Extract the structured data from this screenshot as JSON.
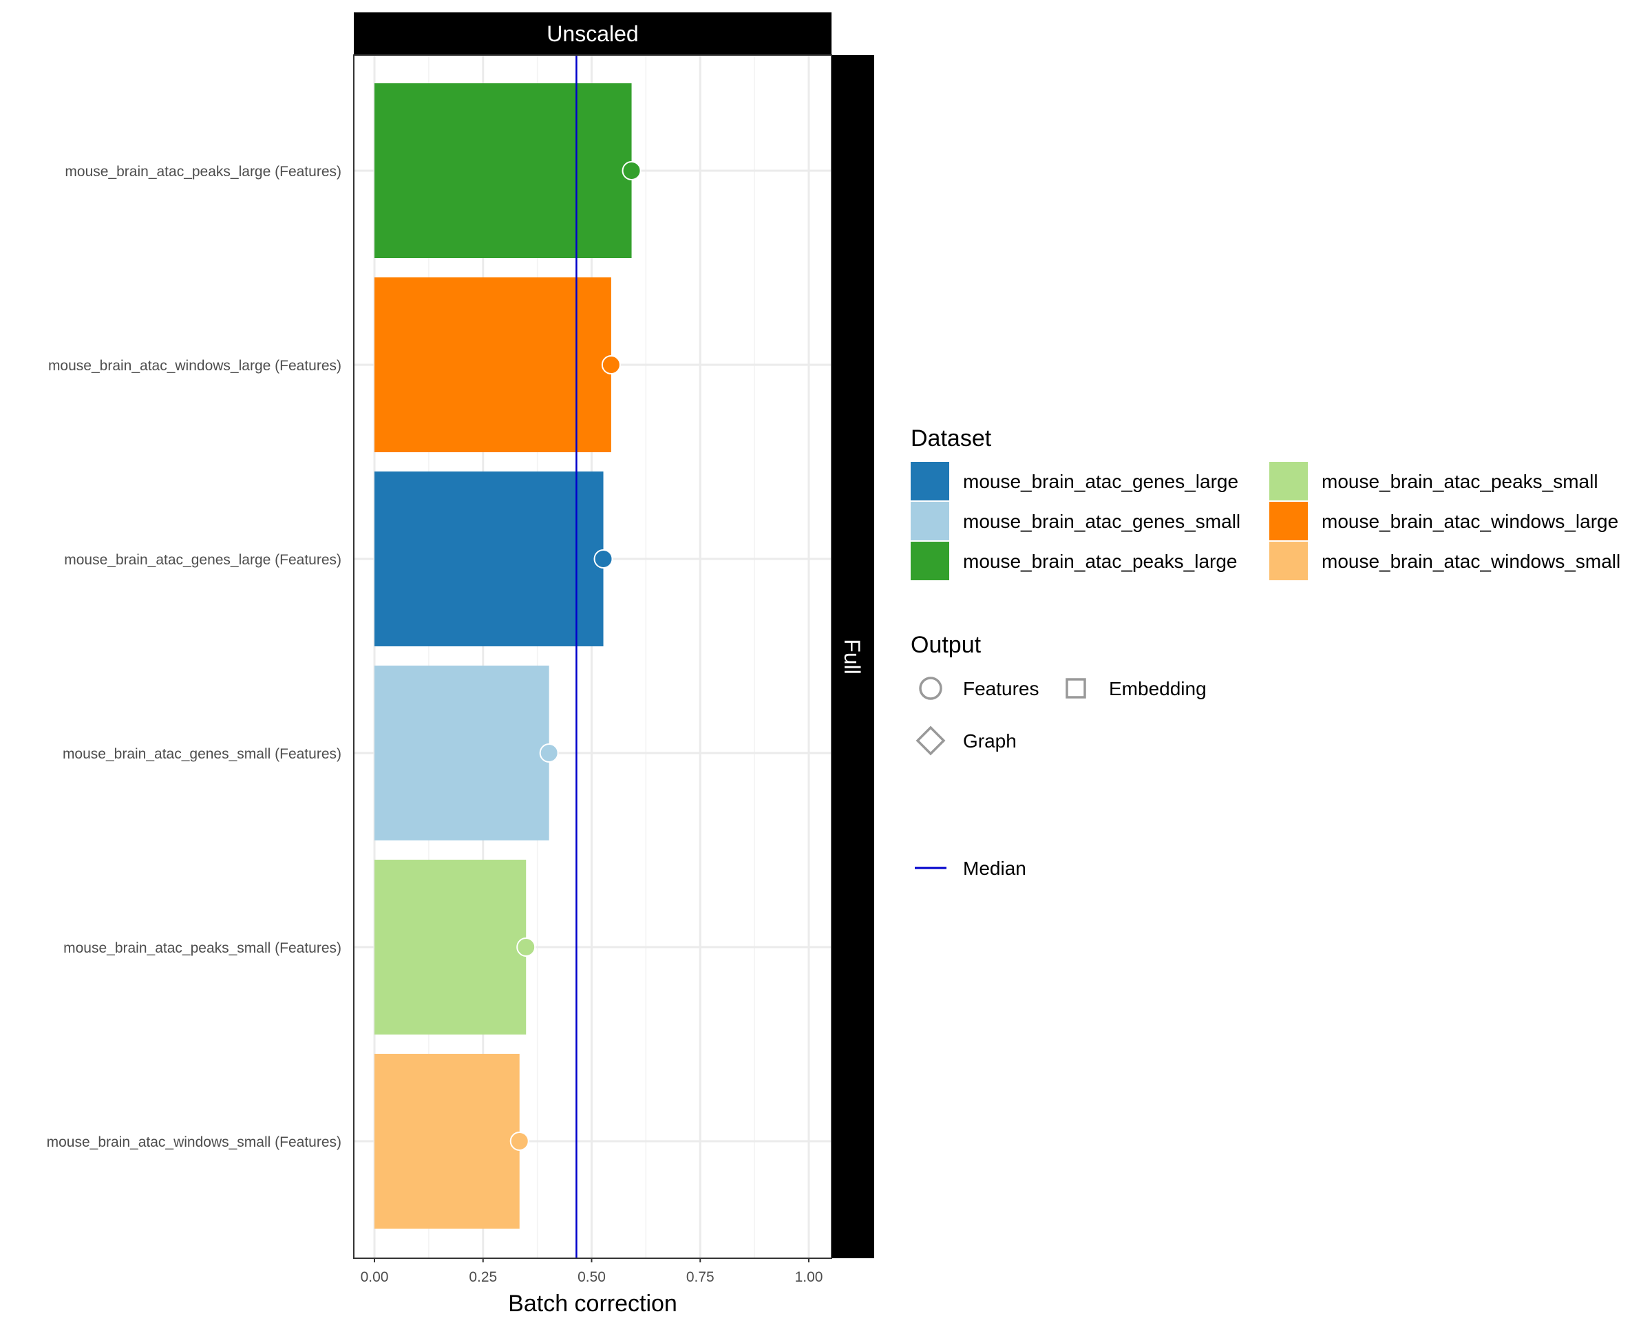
{
  "chart_data": {
    "type": "bar",
    "orientation": "horizontal",
    "facet_top": "Unscaled",
    "facet_right": "Full",
    "xlabel": "Batch correction",
    "ylabel": "",
    "xlim": [
      0,
      1.0
    ],
    "x_ticks": [
      "0.00",
      "0.25",
      "0.50",
      "0.75",
      "1.00"
    ],
    "x_tick_values": [
      0,
      0.25,
      0.5,
      0.75,
      1.0
    ],
    "median": 0.465,
    "grid": true,
    "legend_position": "right",
    "bars": [
      {
        "label": "mouse_brain_atac_peaks_large (Features)",
        "dataset": "mouse_brain_atac_peaks_large",
        "output": "Features",
        "value": 0.592
      },
      {
        "label": "mouse_brain_atac_windows_large (Features)",
        "dataset": "mouse_brain_atac_windows_large",
        "output": "Features",
        "value": 0.545
      },
      {
        "label": "mouse_brain_atac_genes_large (Features)",
        "dataset": "mouse_brain_atac_genes_large",
        "output": "Features",
        "value": 0.527
      },
      {
        "label": "mouse_brain_atac_genes_small (Features)",
        "dataset": "mouse_brain_atac_genes_small",
        "output": "Features",
        "value": 0.402
      },
      {
        "label": "mouse_brain_atac_peaks_small (Features)",
        "dataset": "mouse_brain_atac_peaks_small",
        "output": "Features",
        "value": 0.349
      },
      {
        "label": "mouse_brain_atac_windows_small (Features)",
        "dataset": "mouse_brain_atac_windows_small",
        "output": "Features",
        "value": 0.334
      }
    ],
    "colors": {
      "mouse_brain_atac_genes_large": "#1f78b4",
      "mouse_brain_atac_genes_small": "#a6cee3",
      "mouse_brain_atac_peaks_large": "#33a02c",
      "mouse_brain_atac_peaks_small": "#b2df8a",
      "mouse_brain_atac_windows_large": "#ff7f00",
      "mouse_brain_atac_windows_small": "#fdbf6f"
    },
    "median_color": "#0000cc",
    "legend_dataset": {
      "title": "Dataset",
      "items": [
        "mouse_brain_atac_genes_large",
        "mouse_brain_atac_genes_small",
        "mouse_brain_atac_peaks_large",
        "mouse_brain_atac_peaks_small",
        "mouse_brain_atac_windows_large",
        "mouse_brain_atac_windows_small"
      ]
    },
    "legend_output": {
      "title": "Output",
      "items": [
        {
          "label": "Features",
          "shape": "circle-icon"
        },
        {
          "label": "Embedding",
          "shape": "square-icon"
        },
        {
          "label": "Graph",
          "shape": "diamond-icon"
        }
      ]
    },
    "legend_median": {
      "label": "Median"
    }
  }
}
